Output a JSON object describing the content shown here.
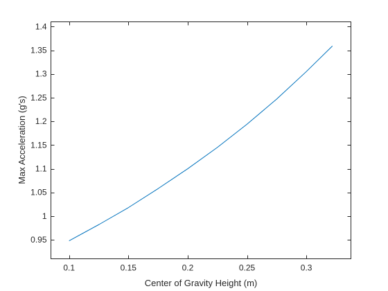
{
  "chart_data": {
    "type": "line",
    "title": "",
    "xlabel": "Center of Gravity Height (m)",
    "ylabel": "Max Acceleration (g's)",
    "xlim": [
      0.0847,
      0.3376
    ],
    "ylim": [
      0.91,
      1.41
    ],
    "x_ticks": [
      0.1,
      0.15,
      0.2,
      0.25,
      0.3
    ],
    "x_tick_labels": [
      "0.1",
      "0.15",
      "0.2",
      "0.25",
      "0.3"
    ],
    "y_ticks": [
      0.95,
      1.0,
      1.05,
      1.1,
      1.15,
      1.2,
      1.25,
      1.3,
      1.35,
      1.4
    ],
    "y_tick_labels": [
      "0.95",
      "1",
      "1.05",
      "1.1",
      "1.15",
      "1.2",
      "1.25",
      "1.3",
      "1.35",
      "1.4"
    ],
    "grid": false,
    "legend": "none",
    "series": [
      {
        "color": "#0072BD",
        "x": [
          0.1,
          0.125,
          0.15,
          0.175,
          0.2,
          0.225,
          0.25,
          0.275,
          0.3,
          0.322
        ],
        "y": [
          0.948,
          0.982,
          1.018,
          1.058,
          1.1,
          1.145,
          1.194,
          1.247,
          1.305,
          1.359
        ]
      }
    ]
  }
}
